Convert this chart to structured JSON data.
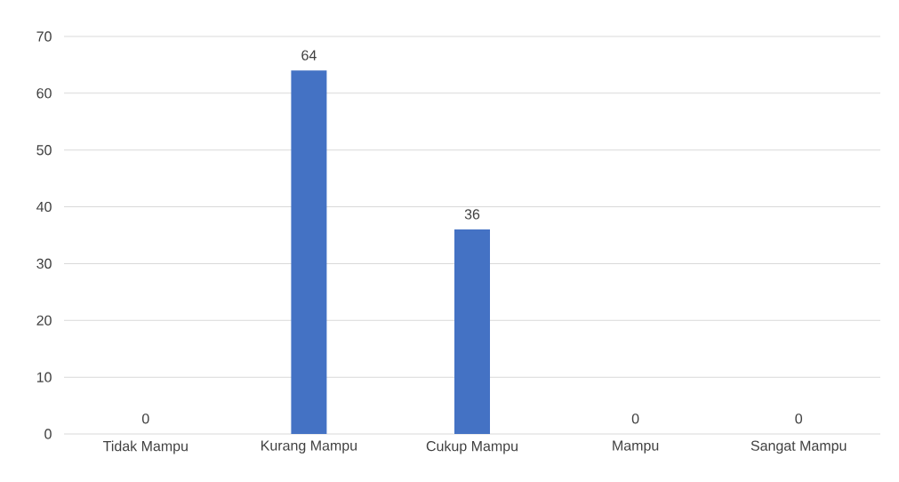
{
  "chart_data": {
    "type": "bar",
    "categories": [
      "Tidak Mampu",
      "Kurang Mampu",
      "Cukup Mampu",
      "Mampu",
      "Sangat Mampu"
    ],
    "values": [
      0,
      64,
      36,
      0,
      0
    ],
    "color": "#4472c4",
    "ylim": [
      0,
      70
    ],
    "yticks": [
      0,
      10,
      20,
      30,
      40,
      50,
      60,
      70
    ],
    "grid": "y",
    "data_labels": true
  }
}
